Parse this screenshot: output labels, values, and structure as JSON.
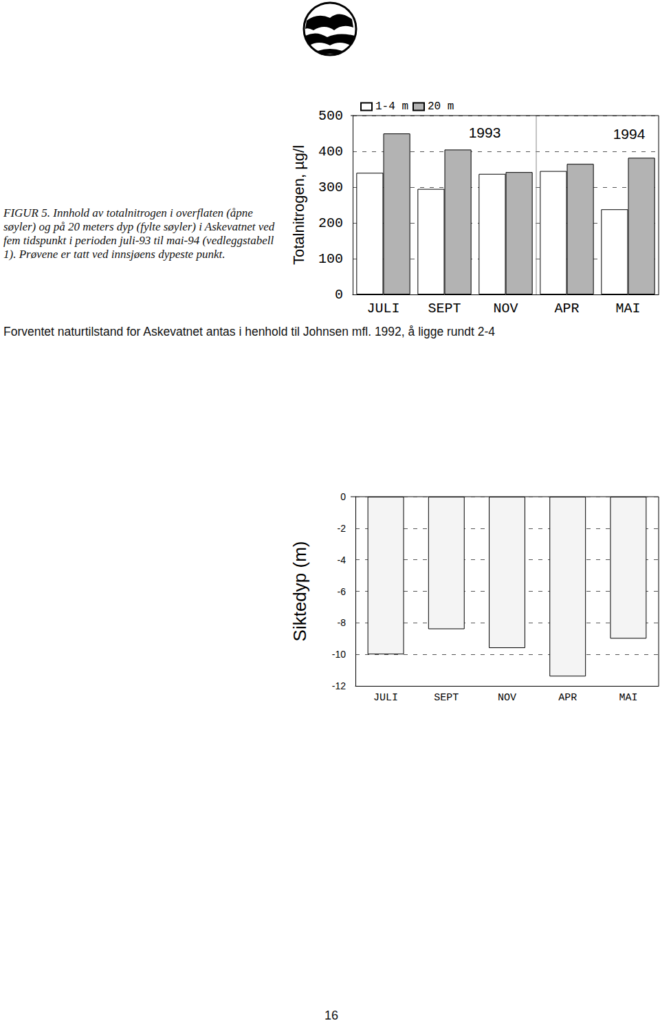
{
  "caption": "FIGUR 5. Innhold av totalnitrogen i overflaten (åpne søyler) og på 20 meters dyp (fylte søyler) i Askevatnet ved fem tidspunkt i perioden juli-93 til mai-94 (vedleggstabell 1). Prøvene er tatt ved innsjøens dypeste punkt.",
  "body_text": "Forventet naturtilstand for Askevatnet antas i henhold til Johnsen mfl. 1992, å ligge rundt 2-4",
  "page_number": "16",
  "chart_data": [
    {
      "type": "bar",
      "y_label": "Totalnitrogen, µg/l",
      "categories": [
        "JULI",
        "SEPT",
        "NOV",
        "APR",
        "MAI"
      ],
      "series": [
        {
          "name": "1-4 m",
          "color": "#ffffff",
          "values": [
            340,
            295,
            337,
            345,
            238
          ]
        },
        {
          "name": "20 m",
          "color": "#b3b3b3",
          "values": [
            450,
            405,
            342,
            365,
            382
          ]
        }
      ],
      "annotations": [
        "1993",
        "1994"
      ],
      "ylim": [
        0,
        500
      ],
      "yticks": [
        0,
        100,
        200,
        300,
        400,
        500
      ],
      "grid": true,
      "legend": "top-left"
    },
    {
      "type": "bar",
      "y_label": "Siktedyp (m)",
      "categories": [
        "JULI",
        "SEPT",
        "NOV",
        "APR",
        "MAI"
      ],
      "values": [
        -10,
        -8.4,
        -9.6,
        -11.4,
        -9
      ],
      "color": "#f4f4f4",
      "ylim": [
        -12,
        0
      ],
      "yticks": [
        -12,
        -10,
        -8,
        -6,
        -4,
        -2,
        0
      ],
      "grid": true
    }
  ]
}
